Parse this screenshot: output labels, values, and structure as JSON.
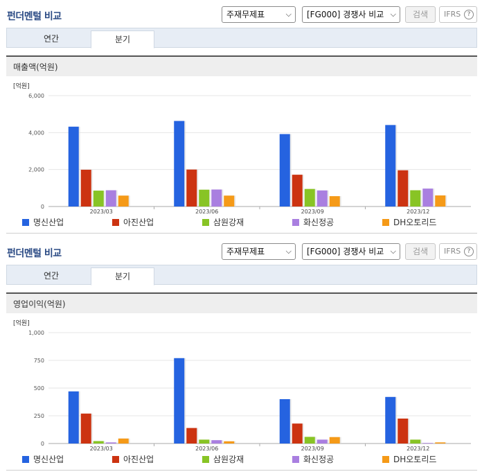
{
  "colors": {
    "명신산업": "#2563e0",
    "아진산업": "#cc3311",
    "삼원강재": "#88c425",
    "화신정공": "#a97fe0",
    "DH오토리드": "#f59a18"
  },
  "sections": [
    {
      "title": "펀더멘털 비교",
      "select1": "주재무제표",
      "select2": "[FG000] 경쟁사 비교",
      "search_label": "검색",
      "ifrs_label": "IFRS",
      "help_icon": "?",
      "tabs": [
        "연간",
        "분기"
      ],
      "active_tab": 1,
      "metric_title": "매출액(억원)",
      "chart_data": {
        "type": "bar",
        "unit_label": "[억원]",
        "ylim": [
          0,
          6000
        ],
        "yticks": [
          "6,000",
          "4,000",
          "2,000",
          "0"
        ],
        "ytick_values": [
          6000,
          4000,
          2000,
          0
        ],
        "categories": [
          "2023/03",
          "2023/06",
          "2023/09",
          "2023/12"
        ],
        "series": [
          {
            "name": "명신산업",
            "values": [
              4320,
              4630,
              3920,
              4410
            ]
          },
          {
            "name": "아진산업",
            "values": [
              1990,
              2000,
              1720,
              1960
            ]
          },
          {
            "name": "삼원강재",
            "values": [
              860,
              910,
              950,
              880
            ]
          },
          {
            "name": "화신정공",
            "values": [
              880,
              920,
              870,
              970
            ]
          },
          {
            "name": "DH오토리드",
            "values": [
              590,
              590,
              560,
              600
            ]
          }
        ],
        "grid": true,
        "legend": "bottom"
      }
    },
    {
      "title": "펀더멘털 비교",
      "select1": "주재무제표",
      "select2": "[FG000] 경쟁사 비교",
      "search_label": "검색",
      "ifrs_label": "IFRS",
      "help_icon": "?",
      "tabs": [
        "연간",
        "분기"
      ],
      "active_tab": 1,
      "metric_title": "영업이익(억원)",
      "chart_data": {
        "type": "bar",
        "unit_label": "[억원]",
        "ylim": [
          0,
          1000
        ],
        "yticks": [
          "1,000",
          "750",
          "500",
          "250",
          "0"
        ],
        "ytick_values": [
          1000,
          750,
          500,
          250,
          0
        ],
        "categories": [
          "2023/03",
          "2023/06",
          "2023/09",
          "2023/12"
        ],
        "series": [
          {
            "name": "명신산업",
            "values": [
              470,
              770,
              400,
              420
            ]
          },
          {
            "name": "아진산업",
            "values": [
              270,
              140,
              180,
              225
            ]
          },
          {
            "name": "삼원강재",
            "values": [
              22,
              35,
              60,
              35
            ]
          },
          {
            "name": "화신정공",
            "values": [
              10,
              30,
              35,
              5
            ]
          },
          {
            "name": "DH오토리드",
            "values": [
              45,
              20,
              58,
              10
            ]
          }
        ],
        "grid": true,
        "legend": "bottom"
      }
    }
  ]
}
